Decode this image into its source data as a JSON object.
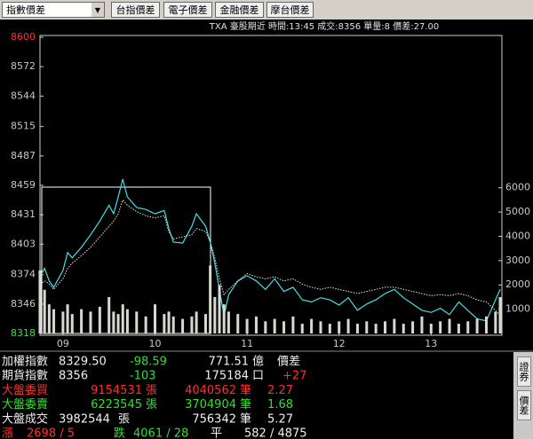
{
  "toolbar": {
    "dropdown": "指數價差",
    "buttons": [
      "台指價差",
      "電子價差",
      "金融價差",
      "摩台價差"
    ]
  },
  "chart_data": {
    "type": "line",
    "title": "TXA  臺股期近 時間:13:45 成交:8356 單量:8  價差:27.00",
    "x": [
      8.75,
      8.8,
      8.85,
      8.9,
      9.0,
      9.05,
      9.1,
      9.2,
      9.3,
      9.4,
      9.5,
      9.55,
      9.6,
      9.65,
      9.7,
      9.8,
      9.9,
      10.0,
      10.1,
      10.15,
      10.2,
      10.3,
      10.4,
      10.45,
      10.55,
      10.6,
      10.65,
      10.7,
      10.75,
      10.8,
      10.9,
      11.0,
      11.1,
      11.2,
      11.3,
      11.4,
      11.5,
      11.6,
      11.7,
      11.8,
      11.9,
      12.0,
      12.1,
      12.2,
      12.3,
      12.4,
      12.5,
      12.6,
      12.7,
      12.8,
      12.9,
      13.0,
      13.1,
      13.2,
      13.3,
      13.4,
      13.5,
      13.6,
      13.7,
      13.75
    ],
    "series": [
      {
        "color": "#40e0e8",
        "style": "solid",
        "values": [
          8372,
          8380,
          8368,
          8362,
          8378,
          8395,
          8390,
          8400,
          8412,
          8425,
          8440,
          8432,
          8448,
          8465,
          8448,
          8438,
          8436,
          8432,
          8435,
          8418,
          8405,
          8404,
          8420,
          8432,
          8420,
          8405,
          8385,
          8360,
          8335,
          8355,
          8368,
          8373,
          8368,
          8360,
          8370,
          8358,
          8362,
          8350,
          8348,
          8352,
          8350,
          8345,
          8352,
          8340,
          8346,
          8350,
          8356,
          8360,
          8352,
          8346,
          8340,
          8338,
          8342,
          8336,
          8348,
          8340,
          8332,
          8330,
          8350,
          8360
        ]
      },
      {
        "color": "#e8e8e8",
        "style": "dotted",
        "values": [
          8365,
          8368,
          8365,
          8360,
          8370,
          8380,
          8385,
          8392,
          8400,
          8410,
          8420,
          8425,
          8432,
          8445,
          8440,
          8434,
          8430,
          8428,
          8430,
          8415,
          8408,
          8410,
          8412,
          8418,
          8415,
          8405,
          8390,
          8370,
          8355,
          8360,
          8368,
          8375,
          8372,
          8370,
          8372,
          8368,
          8370,
          8365,
          8362,
          8360,
          8362,
          8360,
          8358,
          8356,
          8358,
          8360,
          8362,
          8362,
          8360,
          8358,
          8356,
          8354,
          8355,
          8354,
          8356,
          8354,
          8350,
          8348,
          8340,
          8335
        ]
      },
      {
        "color": "#d8d8d0",
        "axis": "y2",
        "style": "bar",
        "values": [
          2600,
          1800,
          1200,
          1000,
          900,
          1200,
          800,
          1000,
          900,
          1100,
          1500,
          900,
          800,
          1200,
          1000,
          900,
          700,
          1200,
          800,
          900,
          700,
          600,
          700,
          900,
          800,
          2800,
          1500,
          2000,
          1200,
          900,
          800,
          600,
          700,
          500,
          600,
          500,
          700,
          400,
          600,
          500,
          400,
          500,
          600,
          400,
          500,
          400,
          500,
          600,
          400,
          500,
          700,
          400,
          500,
          600,
          400,
          500,
          600,
          700,
          900,
          1500
        ]
      }
    ],
    "xlim": [
      8.75,
      13.75
    ],
    "xticks": [
      {
        "value": 9,
        "label": "09"
      },
      10,
      11,
      12,
      13
    ],
    "ylim": [
      8318,
      8600
    ],
    "yticks": [
      8600,
      8572,
      8544,
      8515,
      8487,
      8459,
      8431,
      8403,
      8374,
      8346,
      8318
    ],
    "y2lim": [
      0,
      12200
    ],
    "y2ticks": [
      6000,
      5000,
      4000,
      3000,
      2000,
      1000
    ]
  },
  "quote_panel": {
    "rows": [
      [
        "加權指數",
        "8329.50",
        "-98.59",
        "771.51",
        "億",
        "價差"
      ],
      [
        "期貨指數",
        "8356",
        "-103",
        "175184",
        "口",
        "+27"
      ],
      [
        "大盤委買",
        "9154531",
        "張",
        "4040562",
        "筆",
        "2.27"
      ],
      [
        "大盤委賣",
        "6223545",
        "張",
        "3704904",
        "筆",
        "1.68"
      ],
      [
        "大盤成交",
        "3982544",
        "張",
        "756342",
        "筆",
        "5.27"
      ],
      [
        "漲",
        "2698 / 5",
        "跌",
        "4061 / 28",
        "平",
        "582 / 4875"
      ]
    ]
  },
  "side_buttons": [
    "證券",
    "價差"
  ]
}
